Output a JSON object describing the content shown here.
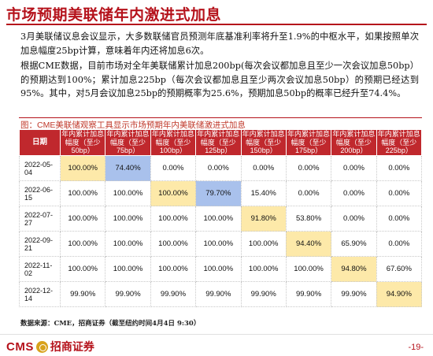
{
  "header": {
    "title": "市场预期美联储年内激进式加息"
  },
  "paragraphs": {
    "p1": "3月美联储议息会议显示，大多数联储官员预测年底基准利率将升至1.9%的中枢水平，如果按照单次加息幅度25bp计算，意味着年内还将加息6次。",
    "p2": "根据CME数据，目前市场对全年美联储累计加息200bp(每次会议都加息且至少一次会议加息50bp）的预期达到100%；累计加息225bp（每次会议都加息且至少两次会议加息50bp）的预期已经达到95%。其中，对5月会议加息25bp的预期概率为25.6%，预期加息50bp的概率已经升至74.4%。"
  },
  "figure": {
    "title": "图：CME美联储观察工具显示市场预期年内美联储激进式加息"
  },
  "table": {
    "date_header": "日期",
    "columns": [
      "年内累计加息幅度（至少50bp）",
      "年内累计加息幅度（至少75bp）",
      "年内累计加息幅度（至少100bp）",
      "年内累计加息幅度（至少125bp）",
      "年内累计加息幅度（至少150bp）",
      "年内累计加息幅度（至少175bp）",
      "年内累计加息幅度（至少200bp）",
      "年内累计加息幅度（至少225bp）"
    ],
    "rows": [
      {
        "date": "2022-05-04",
        "cells": [
          "100.00%",
          "74.40%",
          "0.00%",
          "0.00%",
          "0.00%",
          "0.00%",
          "0.00%",
          "0.00%"
        ]
      },
      {
        "date": "2022-06-15",
        "cells": [
          "100.00%",
          "100.00%",
          "100.00%",
          "79.70%",
          "15.40%",
          "0.00%",
          "0.00%",
          "0.00%"
        ]
      },
      {
        "date": "2022-07-27",
        "cells": [
          "100.00%",
          "100.00%",
          "100.00%",
          "100.00%",
          "91.80%",
          "53.80%",
          "0.00%",
          "0.00%"
        ]
      },
      {
        "date": "2022-09-21",
        "cells": [
          "100.00%",
          "100.00%",
          "100.00%",
          "100.00%",
          "100.00%",
          "94.40%",
          "65.90%",
          "0.00%"
        ]
      },
      {
        "date": "2022-11-02",
        "cells": [
          "100.00%",
          "100.00%",
          "100.00%",
          "100.00%",
          "100.00%",
          "100.00%",
          "94.80%",
          "67.60%"
        ]
      },
      {
        "date": "2022-12-14",
        "cells": [
          "99.90%",
          "99.90%",
          "99.90%",
          "99.90%",
          "99.90%",
          "99.90%",
          "99.90%",
          "94.90%"
        ]
      }
    ],
    "highlight_colors": {
      "yellow": "#fde9a9",
      "blue": "#a9c1ec",
      "header_red": "#c0282d"
    }
  },
  "source": {
    "text": "数据来源：CME，招商证券（截至纽约时间4月4日 9:30）"
  },
  "footer": {
    "logo_latin": "CMS",
    "logo_icon": "cms-emblem-icon",
    "logo_cn": "招商证券",
    "page": "-19-"
  }
}
